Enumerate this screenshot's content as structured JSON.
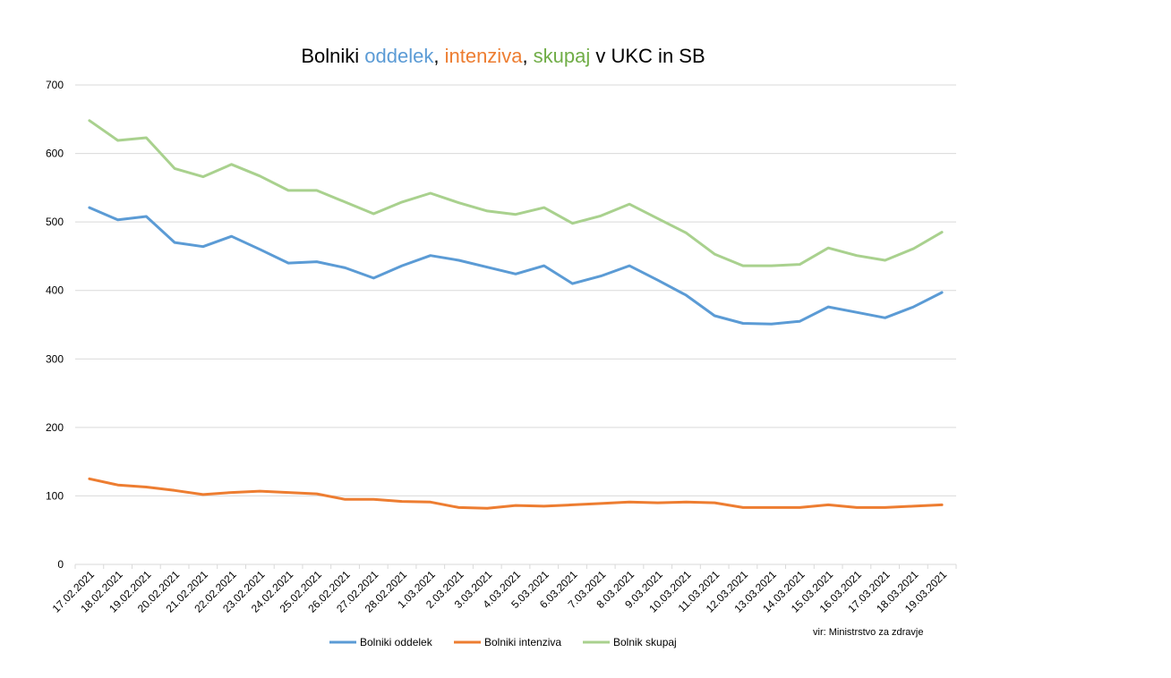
{
  "chart_data": {
    "type": "line",
    "title_parts": [
      {
        "text": "Bolniki ",
        "color": "#000000"
      },
      {
        "text": "oddelek",
        "color": "#5B9BD5"
      },
      {
        "text": ", ",
        "color": "#000000"
      },
      {
        "text": "intenziva",
        "color": "#ED7D31"
      },
      {
        "text": ", ",
        "color": "#000000"
      },
      {
        "text": "skupaj",
        "color": "#70AD47"
      },
      {
        "text": " v UKC in SB",
        "color": "#000000"
      }
    ],
    "x": [
      "17.02.2021",
      "18.02.2021",
      "19.02.2021",
      "20.02.2021",
      "21.02.2021",
      "22.02.2021",
      "23.02.2021",
      "24.02.2021",
      "25.02.2021",
      "26.02.2021",
      "27.02.2021",
      "28.02.2021",
      "1.03.2021",
      "2.03.2021",
      "3.03.2021",
      "4.03.2021",
      "5.03.2021",
      "6.03.2021",
      "7.03.2021",
      "8.03.2021",
      "9.03.2021",
      "10.03.2021",
      "11.03.2021",
      "12.03.2021",
      "13.03.2021",
      "14.03.2021",
      "15.03.2021",
      "16.03.2021",
      "17.03.2021",
      "18.03.2021",
      "19.03.2021"
    ],
    "ylim": [
      0,
      700
    ],
    "yticks": [
      0,
      100,
      200,
      300,
      400,
      500,
      600,
      700
    ],
    "grid": true,
    "legend_position": "bottom",
    "series": [
      {
        "name": "Bolniki oddelek",
        "color": "#5B9BD5",
        "values": [
          521,
          503,
          508,
          470,
          464,
          479,
          460,
          440,
          442,
          433,
          418,
          436,
          451,
          444,
          434,
          424,
          436,
          410,
          421,
          436,
          415,
          393,
          363,
          352,
          351,
          355,
          376,
          368,
          360,
          376,
          397
        ]
      },
      {
        "name": "Bolniki intenziva",
        "color": "#ED7D31",
        "values": [
          125,
          116,
          113,
          108,
          102,
          105,
          107,
          105,
          103,
          95,
          95,
          92,
          91,
          83,
          82,
          86,
          85,
          87,
          89,
          91,
          90,
          91,
          90,
          83,
          83,
          83,
          87,
          83,
          83,
          85,
          87
        ]
      },
      {
        "name": "Bolnik skupaj",
        "color": "#A9D18E",
        "values": [
          648,
          619,
          623,
          578,
          566,
          584,
          567,
          546,
          546,
          529,
          512,
          529,
          542,
          528,
          516,
          511,
          521,
          498,
          509,
          526,
          505,
          484,
          453,
          436,
          436,
          438,
          462,
          451,
          444,
          461,
          485
        ]
      }
    ],
    "source": "vir: Ministrstvo za zdravje"
  }
}
